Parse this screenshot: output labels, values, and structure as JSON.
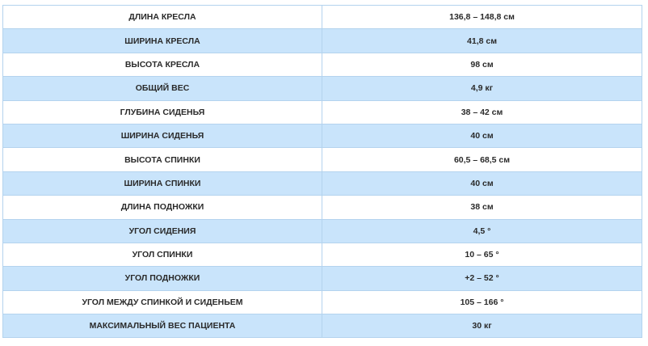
{
  "rows": [
    {
      "label": "ДЛИНА КРЕСЛА",
      "value": "136,8 – 148,8 см"
    },
    {
      "label": "ШИРИНА КРЕСЛА",
      "value": "41,8 см"
    },
    {
      "label": "ВЫСОТА КРЕСЛА",
      "value": "98 см"
    },
    {
      "label": "ОБЩИЙ ВЕС",
      "value": "4,9 кг"
    },
    {
      "label": "ГЛУБИНА СИДЕНЬЯ",
      "value": "38 – 42 см"
    },
    {
      "label": "ШИРИНА СИДЕНЬЯ",
      "value": "40 см"
    },
    {
      "label": "ВЫСОТА СПИНКИ",
      "value": "60,5 – 68,5 см"
    },
    {
      "label": "ШИРИНА СПИНКИ",
      "value": "40 см"
    },
    {
      "label": "ДЛИНА ПОДНОЖКИ",
      "value": "38 см"
    },
    {
      "label": "УГОЛ СИДЕНИЯ",
      "value": "4,5 °"
    },
    {
      "label": "УГОЛ СПИНКИ",
      "value": "10 – 65 °"
    },
    {
      "label": "УГОЛ ПОДНОЖКИ",
      "value": "+2 – 52 °"
    },
    {
      "label": "УГОЛ МЕЖДУ СПИНКОЙ И СИДЕНЬЕМ",
      "value": "105 – 166 °"
    },
    {
      "label": "МАКСИМАЛЬНЫЙ ВЕС ПАЦИЕНТА",
      "value": "30 кг"
    }
  ],
  "colors": {
    "alt_row": "#c9e4fb",
    "border": "#b4d3ee"
  }
}
